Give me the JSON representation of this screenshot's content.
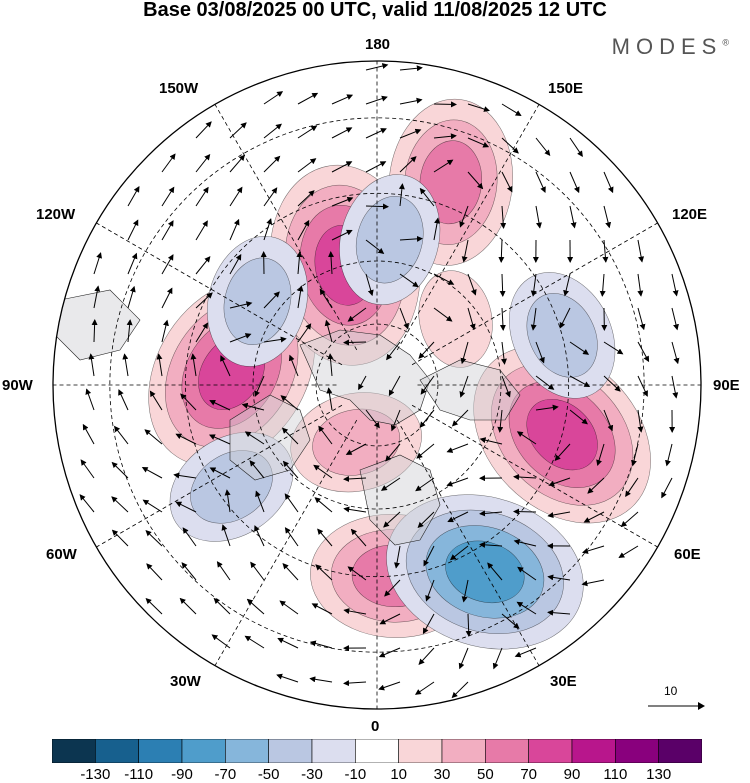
{
  "title": "Base 03/08/2025 00 UTC, valid 11/08/2025 12 UTC",
  "brand": "MODES",
  "brand_mark": "®",
  "longitude_labels": {
    "top": "180",
    "top_left": "150W",
    "top_right": "150E",
    "upper_left": "120W",
    "upper_right": "120E",
    "left": "90W",
    "right": "90E",
    "lower_left": "60W",
    "lower_right": "60E",
    "bottom_left": "30W",
    "bottom_right": "30E",
    "bottom": "0"
  },
  "reference_vector": {
    "label": "10"
  },
  "colorbar": {
    "colors": [
      "#0c3550",
      "#17608e",
      "#2c7fb3",
      "#4f9dcb",
      "#86b6db",
      "#bac7e2",
      "#dcdeef",
      "#ffffff",
      "#f9d6d8",
      "#f2aec1",
      "#e77aa8",
      "#d9469a",
      "#b8168c",
      "#89007d",
      "#5a0068"
    ],
    "labels": [
      "-130",
      "-110",
      "-90",
      "-70",
      "-50",
      "-30",
      "-10",
      "10",
      "30",
      "50",
      "70",
      "90",
      "110",
      "130"
    ]
  },
  "chart_data": {
    "type": "polar-stereographic anomaly map",
    "projection": "north polar stereographic, 0 at bottom, 180 at top",
    "field": "height anomaly (shaded) with flow arrows",
    "anomaly_centers": [
      {
        "lon_deg": -95,
        "lat_deg": 55,
        "value": 90,
        "sign": "positive"
      },
      {
        "lon_deg": -165,
        "lat_deg": 60,
        "value": 90,
        "sign": "positive"
      },
      {
        "lon_deg": 160,
        "lat_deg": 40,
        "value": 70,
        "sign": "positive"
      },
      {
        "lon_deg": 75,
        "lat_deg": 45,
        "value": 90,
        "sign": "positive"
      },
      {
        "lon_deg": 5,
        "lat_deg": 45,
        "value": 70,
        "sign": "positive"
      },
      {
        "lon_deg": -20,
        "lat_deg": 75,
        "value": 50,
        "sign": "positive"
      },
      {
        "lon_deg": 130,
        "lat_deg": 65,
        "value": 30,
        "sign": "positive"
      },
      {
        "lon_deg": 30,
        "lat_deg": 40,
        "value": -90,
        "sign": "negative"
      },
      {
        "lon_deg": -55,
        "lat_deg": 48,
        "value": -50,
        "sign": "negative"
      },
      {
        "lon_deg": -125,
        "lat_deg": 55,
        "value": -50,
        "sign": "negative"
      },
      {
        "lon_deg": 175,
        "lat_deg": 55,
        "value": -50,
        "sign": "negative"
      },
      {
        "lon_deg": 105,
        "lat_deg": 45,
        "value": -50,
        "sign": "negative"
      }
    ]
  }
}
